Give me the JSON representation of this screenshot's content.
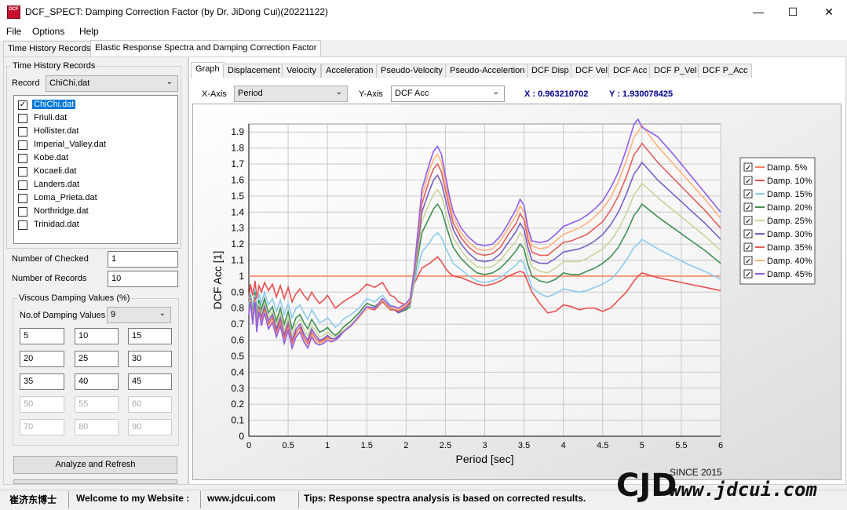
{
  "window": {
    "title": "DCF_SPECT: Damping Correction Factor (by Dr. JiDong Cui)(20221122)",
    "icon_text": "DCF",
    "controls": [
      "minimize",
      "maximize",
      "close"
    ]
  },
  "menu": [
    "File",
    "Options",
    "Help"
  ],
  "main_tabs": [
    "Time History Records",
    "Elastic Response Spectra and Damping Correction Factor"
  ],
  "left": {
    "group_title": "Time History Records",
    "record_label": "Record",
    "record_value": "ChiChi.dat",
    "records": [
      {
        "name": "ChiChi.dat",
        "checked": true,
        "selected": true
      },
      {
        "name": "Friuli.dat",
        "checked": false
      },
      {
        "name": "Hollister.dat",
        "checked": false
      },
      {
        "name": "Imperial_Valley.dat",
        "checked": false
      },
      {
        "name": "Kobe.dat",
        "checked": false
      },
      {
        "name": "Kocaeli.dat",
        "checked": false
      },
      {
        "name": "Landers.dat",
        "checked": false
      },
      {
        "name": "Loma_Prieta.dat",
        "checked": false
      },
      {
        "name": "Northridge.dat",
        "checked": false
      },
      {
        "name": "Trinidad.dat",
        "checked": false
      }
    ],
    "checked_label": "Number of Checked",
    "checked_value": "1",
    "records_label": "Number of Records",
    "records_value": "10",
    "damping_group_title": "Viscous Damping Values (%)",
    "num_damping_label": "No.of Damping Values",
    "num_damping_value": "9",
    "damping_values": [
      "5",
      "10",
      "15",
      "20",
      "25",
      "30",
      "35",
      "40",
      "45",
      "50",
      "55",
      "60",
      "70",
      "80",
      "90"
    ],
    "analyze_button": "Analyze and Refresh"
  },
  "sub_tabs": [
    "Graph",
    "Displacement",
    "Velocity",
    "Acceleration",
    "Pseudo-Velocity",
    "Pseudo-Accelertion",
    "DCF Disp",
    "DCF Vel",
    "DCF Acc",
    "DCF P_Vel",
    "DCF P_Acc"
  ],
  "axes_controls": {
    "x_label": "X-Axis",
    "x_value": "Period",
    "y_label": "Y-Axis",
    "y_value": "DCF Acc",
    "x_readout": "X : 0.963210702",
    "y_readout": "Y : 1.930078425"
  },
  "status": {
    "author": "崔济东博士",
    "welcome": "Welcome to my Website :",
    "website": "www.jdcui.com",
    "tips": "Tips: Response spectra analysis is based on corrected results."
  },
  "watermark": {
    "logo": "CJD",
    "since": "SINCE 2015",
    "url": "www.jdcui.com"
  },
  "chart_data": {
    "type": "line",
    "xlabel": "Period [sec]",
    "ylabel": "DCF Acc [1]",
    "xlim": [
      0,
      6
    ],
    "ylim": [
      0,
      1.95
    ],
    "xticks": [
      "0",
      "0.5",
      "1",
      "1.5",
      "2",
      "2.5",
      "3",
      "3.5",
      "4",
      "4.5",
      "5",
      "5.5",
      "6"
    ],
    "yticks": [
      "0",
      "0.1",
      "0.2",
      "0.3",
      "0.4",
      "0.5",
      "0.6",
      "0.7",
      "0.8",
      "0.9",
      "1",
      "1.1",
      "1.2",
      "1.3",
      "1.4",
      "1.5",
      "1.6",
      "1.7",
      "1.8",
      "1.9"
    ],
    "grid": true,
    "legend_position": "right",
    "x": [
      0.0,
      0.02,
      0.05,
      0.08,
      0.1,
      0.13,
      0.16,
      0.2,
      0.25,
      0.3,
      0.35,
      0.4,
      0.45,
      0.5,
      0.55,
      0.6,
      0.65,
      0.7,
      0.75,
      0.8,
      0.85,
      0.9,
      0.95,
      1.0,
      1.05,
      1.1,
      1.15,
      1.2,
      1.3,
      1.4,
      1.5,
      1.6,
      1.7,
      1.8,
      1.85,
      1.9,
      2.0,
      2.05,
      2.1,
      2.2,
      2.3,
      2.35,
      2.4,
      2.45,
      2.5,
      2.55,
      2.6,
      2.7,
      2.8,
      2.9,
      3.0,
      3.1,
      3.2,
      3.3,
      3.4,
      3.45,
      3.5,
      3.55,
      3.6,
      3.7,
      3.8,
      3.9,
      4.0,
      4.1,
      4.2,
      4.3,
      4.4,
      4.5,
      4.6,
      4.7,
      4.8,
      4.9,
      4.95,
      5.0,
      5.2,
      5.4,
      5.6,
      5.8,
      6.0
    ],
    "series": [
      {
        "name": "Damp. 5%",
        "color": "#f4845f",
        "values": [
          1,
          1,
          1,
          1,
          1,
          1,
          1,
          1,
          1,
          1,
          1,
          1,
          1,
          1,
          1,
          1,
          1,
          1,
          1,
          1,
          1,
          1,
          1,
          1,
          1,
          1,
          1,
          1,
          1,
          1,
          1,
          1,
          1,
          1,
          1,
          1,
          1,
          1,
          1,
          1,
          1,
          1,
          1,
          1,
          1,
          1,
          1,
          1,
          1,
          1,
          1,
          1,
          1,
          1,
          1,
          1,
          1,
          1,
          1,
          1,
          1,
          1,
          1,
          1,
          1,
          1,
          1,
          1,
          1,
          1,
          1,
          1,
          1,
          1,
          1,
          1,
          1,
          1,
          1
        ]
      },
      {
        "name": "Damp. 10%",
        "color": "#e8504e",
        "values": [
          0.85,
          0.95,
          0.88,
          0.97,
          0.86,
          0.94,
          0.9,
          0.96,
          0.91,
          0.95,
          0.87,
          0.94,
          0.86,
          0.93,
          0.84,
          0.89,
          0.92,
          0.88,
          0.85,
          0.9,
          0.86,
          0.83,
          0.85,
          0.88,
          0.84,
          0.8,
          0.82,
          0.84,
          0.87,
          0.9,
          0.95,
          0.93,
          0.96,
          0.88,
          0.87,
          0.84,
          0.82,
          0.85,
          0.95,
          1.05,
          1.08,
          1.1,
          1.12,
          1.09,
          1.05,
          1.02,
          1.0,
          0.99,
          0.97,
          0.95,
          0.94,
          0.95,
          0.97,
          1.0,
          1.02,
          1.03,
          1.02,
          0.96,
          0.9,
          0.83,
          0.77,
          0.78,
          0.82,
          0.81,
          0.79,
          0.8,
          0.8,
          0.78,
          0.8,
          0.85,
          0.9,
          0.97,
          1.0,
          1.02,
          0.99,
          0.97,
          0.95,
          0.93,
          0.91
        ]
      },
      {
        "name": "Damp. 15%",
        "color": "#8ccaf0",
        "values": [
          0.82,
          0.9,
          0.8,
          0.92,
          0.78,
          0.89,
          0.83,
          0.9,
          0.82,
          0.86,
          0.78,
          0.85,
          0.76,
          0.83,
          0.74,
          0.8,
          0.82,
          0.77,
          0.73,
          0.79,
          0.75,
          0.71,
          0.72,
          0.74,
          0.71,
          0.68,
          0.7,
          0.73,
          0.76,
          0.8,
          0.86,
          0.84,
          0.88,
          0.82,
          0.81,
          0.78,
          0.8,
          0.82,
          0.95,
          1.15,
          1.21,
          1.25,
          1.27,
          1.24,
          1.18,
          1.13,
          1.08,
          1.04,
          1.0,
          0.97,
          0.96,
          0.97,
          0.99,
          1.03,
          1.07,
          1.1,
          1.08,
          1.0,
          0.93,
          0.89,
          0.87,
          0.89,
          0.92,
          0.91,
          0.9,
          0.91,
          0.93,
          0.95,
          0.98,
          1.03,
          1.1,
          1.18,
          1.2,
          1.23,
          1.17,
          1.12,
          1.07,
          1.03,
          0.98
        ]
      },
      {
        "name": "Damp. 20%",
        "color": "#3f8f52",
        "values": [
          0.8,
          0.88,
          0.77,
          0.9,
          0.73,
          0.85,
          0.79,
          0.86,
          0.77,
          0.81,
          0.72,
          0.8,
          0.7,
          0.78,
          0.67,
          0.74,
          0.76,
          0.71,
          0.67,
          0.73,
          0.69,
          0.65,
          0.66,
          0.68,
          0.65,
          0.63,
          0.65,
          0.68,
          0.72,
          0.77,
          0.83,
          0.81,
          0.85,
          0.8,
          0.79,
          0.77,
          0.79,
          0.81,
          0.97,
          1.27,
          1.37,
          1.42,
          1.45,
          1.41,
          1.33,
          1.25,
          1.18,
          1.11,
          1.06,
          1.02,
          1.01,
          1.02,
          1.05,
          1.1,
          1.16,
          1.2,
          1.17,
          1.07,
          1.0,
          0.97,
          0.96,
          0.98,
          1.02,
          1.01,
          1.01,
          1.03,
          1.05,
          1.08,
          1.12,
          1.18,
          1.27,
          1.38,
          1.41,
          1.45,
          1.37,
          1.3,
          1.23,
          1.16,
          1.08
        ]
      },
      {
        "name": "Damp. 25%",
        "color": "#c8d49a",
        "values": [
          0.79,
          0.87,
          0.75,
          0.88,
          0.71,
          0.83,
          0.76,
          0.83,
          0.74,
          0.78,
          0.69,
          0.77,
          0.66,
          0.74,
          0.63,
          0.7,
          0.73,
          0.67,
          0.63,
          0.69,
          0.66,
          0.62,
          0.63,
          0.65,
          0.63,
          0.62,
          0.64,
          0.66,
          0.7,
          0.75,
          0.81,
          0.8,
          0.84,
          0.79,
          0.79,
          0.77,
          0.8,
          0.82,
          0.98,
          1.34,
          1.46,
          1.51,
          1.54,
          1.5,
          1.41,
          1.32,
          1.24,
          1.16,
          1.1,
          1.06,
          1.05,
          1.06,
          1.1,
          1.16,
          1.22,
          1.27,
          1.24,
          1.13,
          1.06,
          1.03,
          1.02,
          1.05,
          1.09,
          1.09,
          1.09,
          1.11,
          1.14,
          1.17,
          1.22,
          1.29,
          1.39,
          1.51,
          1.54,
          1.58,
          1.49,
          1.41,
          1.33,
          1.25,
          1.16
        ]
      },
      {
        "name": "Damp. 30%",
        "color": "#7b5fc9",
        "values": [
          0.78,
          0.86,
          0.73,
          0.87,
          0.69,
          0.81,
          0.74,
          0.81,
          0.72,
          0.76,
          0.67,
          0.74,
          0.63,
          0.71,
          0.6,
          0.67,
          0.7,
          0.64,
          0.6,
          0.67,
          0.63,
          0.6,
          0.61,
          0.63,
          0.61,
          0.61,
          0.63,
          0.65,
          0.69,
          0.74,
          0.8,
          0.79,
          0.84,
          0.79,
          0.79,
          0.77,
          0.8,
          0.83,
          1.0,
          1.4,
          1.54,
          1.6,
          1.63,
          1.58,
          1.48,
          1.38,
          1.29,
          1.2,
          1.14,
          1.1,
          1.09,
          1.1,
          1.14,
          1.21,
          1.28,
          1.33,
          1.29,
          1.18,
          1.1,
          1.08,
          1.08,
          1.11,
          1.15,
          1.16,
          1.17,
          1.19,
          1.22,
          1.26,
          1.32,
          1.4,
          1.51,
          1.64,
          1.67,
          1.71,
          1.6,
          1.51,
          1.42,
          1.33,
          1.23
        ]
      },
      {
        "name": "Damp. 35%",
        "color": "#e0605a",
        "values": [
          0.77,
          0.85,
          0.72,
          0.86,
          0.67,
          0.8,
          0.72,
          0.79,
          0.7,
          0.74,
          0.65,
          0.72,
          0.61,
          0.69,
          0.58,
          0.65,
          0.68,
          0.62,
          0.58,
          0.65,
          0.61,
          0.59,
          0.6,
          0.62,
          0.6,
          0.6,
          0.62,
          0.65,
          0.69,
          0.74,
          0.8,
          0.79,
          0.84,
          0.79,
          0.79,
          0.78,
          0.81,
          0.84,
          1.01,
          1.45,
          1.61,
          1.67,
          1.7,
          1.65,
          1.54,
          1.43,
          1.33,
          1.24,
          1.18,
          1.14,
          1.13,
          1.14,
          1.18,
          1.26,
          1.33,
          1.39,
          1.35,
          1.23,
          1.15,
          1.13,
          1.13,
          1.17,
          1.21,
          1.22,
          1.24,
          1.26,
          1.3,
          1.34,
          1.41,
          1.5,
          1.62,
          1.76,
          1.79,
          1.83,
          1.71,
          1.61,
          1.51,
          1.41,
          1.3
        ]
      },
      {
        "name": "Damp. 40%",
        "color": "#ffb27a",
        "values": [
          0.76,
          0.85,
          0.71,
          0.85,
          0.66,
          0.79,
          0.7,
          0.78,
          0.68,
          0.72,
          0.63,
          0.7,
          0.59,
          0.67,
          0.56,
          0.63,
          0.66,
          0.6,
          0.56,
          0.63,
          0.59,
          0.58,
          0.59,
          0.61,
          0.6,
          0.6,
          0.62,
          0.65,
          0.69,
          0.74,
          0.8,
          0.8,
          0.85,
          0.8,
          0.8,
          0.79,
          0.82,
          0.85,
          1.02,
          1.5,
          1.67,
          1.73,
          1.76,
          1.71,
          1.59,
          1.47,
          1.37,
          1.27,
          1.21,
          1.17,
          1.16,
          1.17,
          1.22,
          1.3,
          1.38,
          1.44,
          1.4,
          1.27,
          1.19,
          1.17,
          1.18,
          1.22,
          1.26,
          1.28,
          1.3,
          1.33,
          1.37,
          1.42,
          1.49,
          1.59,
          1.72,
          1.87,
          1.9,
          1.94,
          1.81,
          1.7,
          1.59,
          1.48,
          1.36
        ]
      },
      {
        "name": "Damp. 45%",
        "color": "#8f5fe8",
        "values": [
          0.76,
          0.84,
          0.7,
          0.84,
          0.65,
          0.78,
          0.69,
          0.77,
          0.67,
          0.71,
          0.62,
          0.69,
          0.58,
          0.66,
          0.55,
          0.62,
          0.65,
          0.59,
          0.55,
          0.62,
          0.58,
          0.57,
          0.58,
          0.6,
          0.59,
          0.6,
          0.62,
          0.65,
          0.69,
          0.75,
          0.81,
          0.8,
          0.86,
          0.81,
          0.81,
          0.8,
          0.83,
          0.86,
          1.03,
          1.54,
          1.71,
          1.78,
          1.81,
          1.76,
          1.63,
          1.5,
          1.4,
          1.3,
          1.24,
          1.2,
          1.19,
          1.2,
          1.25,
          1.33,
          1.42,
          1.48,
          1.44,
          1.3,
          1.22,
          1.21,
          1.22,
          1.26,
          1.31,
          1.33,
          1.35,
          1.38,
          1.42,
          1.47,
          1.55,
          1.65,
          1.79,
          1.95,
          1.98,
          1.93,
          1.87,
          1.76,
          1.64,
          1.52,
          1.4
        ]
      }
    ]
  }
}
